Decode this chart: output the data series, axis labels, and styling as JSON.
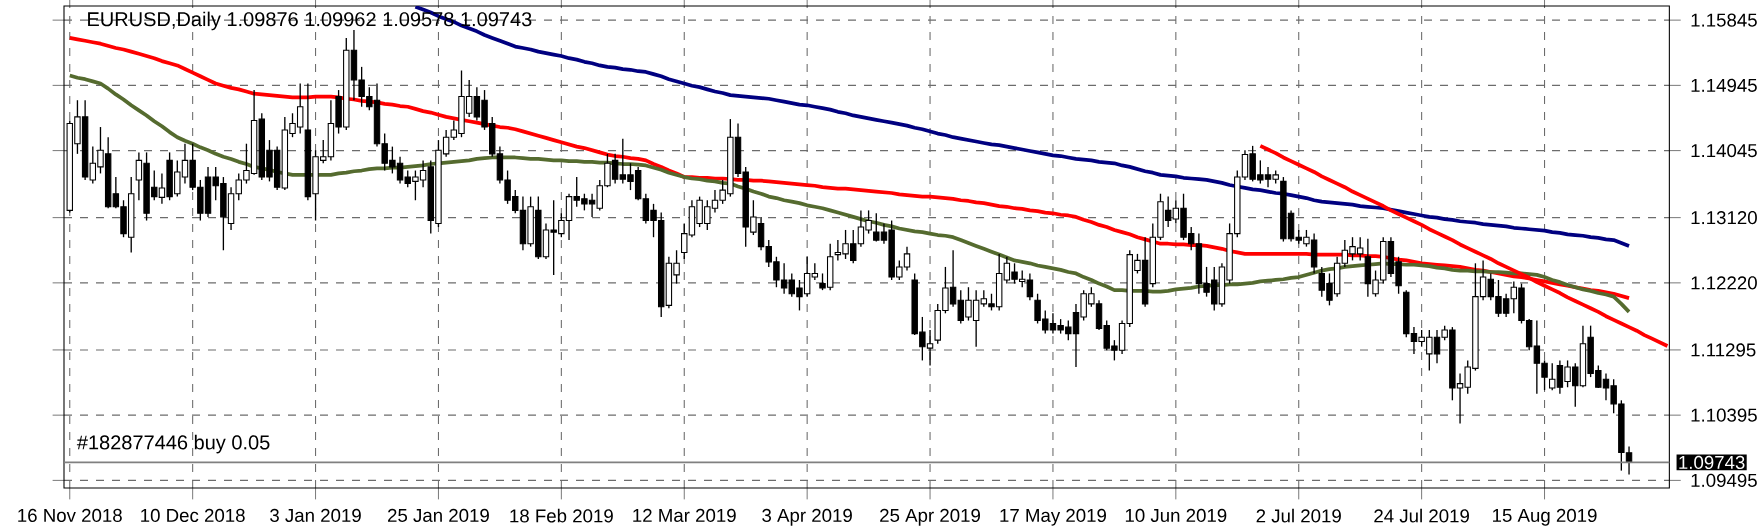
{
  "chart_data": {
    "type": "candlestick",
    "title": "EURUSD,Daily  1.09876 1.09962 1.09578 1.09743",
    "annotations": [
      "#182877446 buy 0.05"
    ],
    "categories": [
      "16 Nov 2018",
      null,
      null,
      null,
      null,
      null,
      null,
      null,
      null,
      null,
      null,
      null,
      null,
      null,
      null,
      null,
      "10 Dec 2018",
      null,
      null,
      null,
      null,
      null,
      null,
      null,
      null,
      null,
      null,
      null,
      null,
      null,
      null,
      null,
      "3 Jan 2019",
      null,
      null,
      null,
      null,
      null,
      null,
      null,
      null,
      null,
      null,
      null,
      null,
      null,
      null,
      null,
      "25 Jan 2019",
      null,
      null,
      null,
      null,
      null,
      null,
      null,
      null,
      null,
      null,
      null,
      null,
      null,
      null,
      null,
      "18 Feb 2019",
      null,
      null,
      null,
      null,
      null,
      null,
      null,
      null,
      null,
      null,
      null,
      null,
      null,
      null,
      null,
      "12 Mar 2019",
      null,
      null,
      null,
      null,
      null,
      null,
      null,
      null,
      null,
      null,
      null,
      null,
      null,
      null,
      null,
      "3 Apr 2019",
      null,
      null,
      null,
      null,
      null,
      null,
      null,
      null,
      null,
      null,
      null,
      null,
      null,
      null,
      null,
      "25 Apr 2019",
      null,
      null,
      null,
      null,
      null,
      null,
      null,
      null,
      null,
      null,
      null,
      null,
      null,
      null,
      null,
      "17 May 2019",
      null,
      null,
      null,
      null,
      null,
      null,
      null,
      null,
      null,
      null,
      null,
      null,
      null,
      null,
      null,
      "10 Jun 2019",
      null,
      null,
      null,
      null,
      null,
      null,
      null,
      null,
      null,
      null,
      null,
      null,
      null,
      null,
      null,
      "2 Jul 2019",
      null,
      null,
      null,
      null,
      null,
      null,
      null,
      null,
      null,
      null,
      null,
      null,
      null,
      null,
      null,
      "24 Jul 2019",
      null,
      null,
      null,
      null,
      null,
      null,
      null,
      null,
      null,
      null,
      null,
      null,
      null,
      null,
      null,
      "15 Aug 2019",
      null,
      null,
      null,
      null,
      null,
      null,
      null,
      null,
      null,
      null,
      null,
      null,
      null,
      null,
      null,
      null
    ],
    "ohlc": [
      [
        1.1322,
        1.1446,
        1.1319,
        1.1442
      ],
      [
        1.1414,
        1.1474,
        1.14,
        1.1451
      ],
      [
        1.1451,
        1.1474,
        1.1364,
        1.1368
      ],
      [
        1.1364,
        1.141,
        1.1359,
        1.1387
      ],
      [
        1.1382,
        1.1437,
        1.1373,
        1.1405
      ],
      [
        1.14,
        1.1423,
        1.1325,
        1.1327
      ],
      [
        1.1345,
        1.1368,
        1.1325,
        1.1327
      ],
      [
        1.1327,
        1.1336,
        1.1285,
        1.129
      ],
      [
        1.1285,
        1.1368,
        1.1264,
        1.1345
      ],
      [
        1.1364,
        1.1402,
        1.1336,
        1.1391
      ],
      [
        1.1387,
        1.1402,
        1.1308,
        1.1318
      ],
      [
        1.1354,
        1.1377,
        1.1336,
        1.1341
      ],
      [
        1.134,
        1.1373,
        1.1331,
        1.1353
      ],
      [
        1.1391,
        1.1402,
        1.1336,
        1.1341
      ],
      [
        1.1345,
        1.1391,
        1.1341,
        1.1375
      ],
      [
        1.1368,
        1.1414,
        1.1359,
        1.1391
      ],
      [
        1.1391,
        1.1414,
        1.135,
        1.1354
      ],
      [
        1.1354,
        1.1364,
        1.1308,
        1.1318
      ],
      [
        1.1368,
        1.1382,
        1.1313,
        1.1318
      ],
      [
        1.1368,
        1.1382,
        1.1336,
        1.1356
      ],
      [
        1.1359,
        1.1368,
        1.1267,
        1.1313
      ],
      [
        1.1304,
        1.1354,
        1.1295,
        1.1345
      ],
      [
        1.1345,
        1.1373,
        1.1336,
        1.1364
      ],
      [
        1.1364,
        1.1414,
        1.1359,
        1.1377
      ],
      [
        1.1373,
        1.1488,
        1.1371,
        1.1446
      ],
      [
        1.1448,
        1.1456,
        1.1364,
        1.1368
      ],
      [
        1.1405,
        1.1419,
        1.1362,
        1.1368
      ],
      [
        1.1405,
        1.141,
        1.135,
        1.1354
      ],
      [
        1.1353,
        1.1451,
        1.135,
        1.1433
      ],
      [
        1.1428,
        1.1456,
        1.1423,
        1.1442
      ],
      [
        1.1437,
        1.1497,
        1.1428,
        1.1465
      ],
      [
        1.1433,
        1.1497,
        1.1336,
        1.1341
      ],
      [
        1.1345,
        1.1405,
        1.1308,
        1.1396
      ],
      [
        1.1391,
        1.1419,
        1.1387,
        1.1396
      ],
      [
        1.1396,
        1.1474,
        1.1391,
        1.1442
      ],
      [
        1.1479,
        1.1488,
        1.1428,
        1.1437
      ],
      [
        1.1437,
        1.156,
        1.1433,
        1.1543
      ],
      [
        1.1543,
        1.1571,
        1.1474,
        1.1502
      ],
      [
        1.1502,
        1.152,
        1.1465,
        1.1479
      ],
      [
        1.1479,
        1.1492,
        1.146,
        1.1465
      ],
      [
        1.1474,
        1.1497,
        1.141,
        1.1414
      ],
      [
        1.1414,
        1.1428,
        1.1377,
        1.1387
      ],
      [
        1.1391,
        1.141,
        1.1373,
        1.1382
      ],
      [
        1.1387,
        1.1396,
        1.1359,
        1.1364
      ],
      [
        1.1368,
        1.1377,
        1.1354,
        1.1359
      ],
      [
        1.1362,
        1.1377,
        1.1336,
        1.1368
      ],
      [
        1.1364,
        1.1391,
        1.1354,
        1.1377
      ],
      [
        1.1382,
        1.1391,
        1.129,
        1.1308
      ],
      [
        1.1304,
        1.1419,
        1.1299,
        1.1405
      ],
      [
        1.14,
        1.1433,
        1.1396,
        1.1423
      ],
      [
        1.1423,
        1.1446,
        1.1419,
        1.1433
      ],
      [
        1.1428,
        1.1515,
        1.1423,
        1.1479
      ],
      [
        1.1456,
        1.1502,
        1.1451,
        1.1479
      ],
      [
        1.1479,
        1.1492,
        1.1446,
        1.1451
      ],
      [
        1.1474,
        1.1488,
        1.1433,
        1.1437
      ],
      [
        1.1442,
        1.1451,
        1.1396,
        1.14
      ],
      [
        1.14,
        1.141,
        1.1359,
        1.1364
      ],
      [
        1.1364,
        1.1377,
        1.1331,
        1.1336
      ],
      [
        1.1341,
        1.135,
        1.1318,
        1.1322
      ],
      [
        1.1322,
        1.1341,
        1.1267,
        1.1276
      ],
      [
        1.1276,
        1.1341,
        1.1272,
        1.1327
      ],
      [
        1.1322,
        1.1341,
        1.1255,
        1.1258
      ],
      [
        1.1258,
        1.1304,
        1.1255,
        1.1295
      ],
      [
        1.1295,
        1.1336,
        1.1233,
        1.1292
      ],
      [
        1.129,
        1.1318,
        1.1285,
        1.1308
      ],
      [
        1.1308,
        1.1345,
        1.1281,
        1.1341
      ],
      [
        1.1341,
        1.1368,
        1.1327,
        1.1336
      ],
      [
        1.1338,
        1.1345,
        1.1322,
        1.1331
      ],
      [
        1.1336,
        1.1345,
        1.1313,
        1.1331
      ],
      [
        1.1325,
        1.1364,
        1.1322,
        1.1356
      ],
      [
        1.1356,
        1.14,
        1.1354,
        1.1387
      ],
      [
        1.1391,
        1.14,
        1.1359,
        1.1365
      ],
      [
        1.1371,
        1.1421,
        1.1359,
        1.1365
      ],
      [
        1.1371,
        1.1387,
        1.135,
        1.1362
      ],
      [
        1.1377,
        1.1382,
        1.1336,
        1.1338
      ],
      [
        1.1338,
        1.1345,
        1.1304,
        1.1308
      ],
      [
        1.1322,
        1.1331,
        1.1285,
        1.1308
      ],
      [
        1.1308,
        1.1319,
        1.1175,
        1.1189
      ],
      [
        1.1191,
        1.1258,
        1.1187,
        1.1249
      ],
      [
        1.1233,
        1.1267,
        1.1221,
        1.1249
      ],
      [
        1.1264,
        1.1304,
        1.1255,
        1.129
      ],
      [
        1.1288,
        1.1336,
        1.1285,
        1.1327
      ],
      [
        1.1304,
        1.1341,
        1.1299,
        1.1336
      ],
      [
        1.1304,
        1.1336,
        1.1295,
        1.1327
      ],
      [
        1.1325,
        1.135,
        1.1319,
        1.1336
      ],
      [
        1.1336,
        1.1364,
        1.1331,
        1.135
      ],
      [
        1.1345,
        1.1448,
        1.1341,
        1.1423
      ],
      [
        1.1423,
        1.1442,
        1.1368,
        1.1373
      ],
      [
        1.1375,
        1.1382,
        1.1272,
        1.1299
      ],
      [
        1.1292,
        1.1336,
        1.1288,
        1.1313
      ],
      [
        1.1304,
        1.1313,
        1.1267,
        1.1272
      ],
      [
        1.1272,
        1.1281,
        1.1244,
        1.1251
      ],
      [
        1.1251,
        1.1258,
        1.1216,
        1.1226
      ],
      [
        1.1226,
        1.1249,
        1.1207,
        1.1215
      ],
      [
        1.1226,
        1.1235,
        1.1203,
        1.1207
      ],
      [
        1.1215,
        1.1226,
        1.1184,
        1.1203
      ],
      [
        1.1207,
        1.1258,
        1.1203,
        1.1235
      ],
      [
        1.123,
        1.1249,
        1.1226,
        1.1235
      ],
      [
        1.1221,
        1.1235,
        1.1212,
        1.1215
      ],
      [
        1.1216,
        1.1276,
        1.1212,
        1.1258
      ],
      [
        1.1261,
        1.1281,
        1.1253,
        1.1264
      ],
      [
        1.1262,
        1.1295,
        1.1255,
        1.1276
      ],
      [
        1.1276,
        1.1295,
        1.1249,
        1.1253
      ],
      [
        1.1276,
        1.1322,
        1.1272,
        1.1299
      ],
      [
        1.1295,
        1.1322,
        1.129,
        1.1308
      ],
      [
        1.1292,
        1.1318,
        1.1279,
        1.1281
      ],
      [
        1.1292,
        1.1304,
        1.1276,
        1.1281
      ],
      [
        1.1295,
        1.1308,
        1.1226,
        1.123
      ],
      [
        1.123,
        1.1253,
        1.1226,
        1.1244
      ],
      [
        1.1244,
        1.1272,
        1.1239,
        1.1262
      ],
      [
        1.1226,
        1.1235,
        1.115,
        1.1152
      ],
      [
        1.1154,
        1.1175,
        1.1115,
        1.1134
      ],
      [
        1.1132,
        1.1157,
        1.1108,
        1.1138
      ],
      [
        1.1143,
        1.1193,
        1.1138,
        1.1184
      ],
      [
        1.1184,
        1.1244,
        1.118,
        1.1215
      ],
      [
        1.1216,
        1.1267,
        1.1189,
        1.1193
      ],
      [
        1.1198,
        1.1212,
        1.1166,
        1.117
      ],
      [
        1.1175,
        1.1216,
        1.117,
        1.1198
      ],
      [
        1.117,
        1.1212,
        1.1134,
        1.1198
      ],
      [
        1.1193,
        1.1212,
        1.1189,
        1.12
      ],
      [
        1.1193,
        1.1207,
        1.1184,
        1.1189
      ],
      [
        1.1189,
        1.1262,
        1.1184,
        1.1235
      ],
      [
        1.1226,
        1.1258,
        1.1221,
        1.1249
      ],
      [
        1.1237,
        1.1249,
        1.1221,
        1.1227
      ],
      [
        1.1224,
        1.1239,
        1.1216,
        1.1227
      ],
      [
        1.1226,
        1.1235,
        1.1198,
        1.1203
      ],
      [
        1.1198,
        1.1207,
        1.1166,
        1.117
      ],
      [
        1.1172,
        1.1184,
        1.1152,
        1.1157
      ],
      [
        1.1166,
        1.118,
        1.1152,
        1.1157
      ],
      [
        1.1163,
        1.1172,
        1.1152,
        1.1157
      ],
      [
        1.1161,
        1.117,
        1.1143,
        1.1152
      ],
      [
        1.1181,
        1.1193,
        1.1106,
        1.1152
      ],
      [
        1.1175,
        1.1212,
        1.117,
        1.1207
      ],
      [
        1.1193,
        1.1216,
        1.1189,
        1.1207
      ],
      [
        1.1193,
        1.1198,
        1.1157,
        1.1159
      ],
      [
        1.1163,
        1.117,
        1.1129,
        1.1132
      ],
      [
        1.1135,
        1.1143,
        1.1115,
        1.1129
      ],
      [
        1.1129,
        1.117,
        1.1124,
        1.1166
      ],
      [
        1.1166,
        1.1267,
        1.1161,
        1.1261
      ],
      [
        1.1239,
        1.1262,
        1.1235,
        1.1253
      ],
      [
        1.1253,
        1.1285,
        1.1189,
        1.1193
      ],
      [
        1.1221,
        1.1304,
        1.1216,
        1.1285
      ],
      [
        1.1285,
        1.1345,
        1.1281,
        1.1334
      ],
      [
        1.1322,
        1.1341,
        1.1299,
        1.1308
      ],
      [
        1.131,
        1.1336,
        1.1304,
        1.1325
      ],
      [
        1.1325,
        1.1345,
        1.1281,
        1.1285
      ],
      [
        1.129,
        1.1299,
        1.1267,
        1.1276
      ],
      [
        1.1276,
        1.129,
        1.1207,
        1.1221
      ],
      [
        1.1221,
        1.1244,
        1.1203,
        1.1209
      ],
      [
        1.1226,
        1.1244,
        1.1184,
        1.1193
      ],
      [
        1.1193,
        1.1249,
        1.1189,
        1.1244
      ],
      [
        1.1226,
        1.1304,
        1.1221,
        1.129
      ],
      [
        1.129,
        1.1377,
        1.1285,
        1.1368
      ],
      [
        1.1368,
        1.1405,
        1.1364,
        1.1399
      ],
      [
        1.14,
        1.1411,
        1.1362,
        1.1365
      ],
      [
        1.1371,
        1.1391,
        1.1359,
        1.1364
      ],
      [
        1.1371,
        1.1382,
        1.1354,
        1.1365
      ],
      [
        1.1365,
        1.1377,
        1.1359,
        1.1371
      ],
      [
        1.1362,
        1.1368,
        1.1279,
        1.1283
      ],
      [
        1.1318,
        1.1322,
        1.1279,
        1.1283
      ],
      [
        1.1285,
        1.1295,
        1.1276,
        1.1281
      ],
      [
        1.1276,
        1.1295,
        1.1272,
        1.1285
      ],
      [
        1.1281,
        1.129,
        1.1235,
        1.1244
      ],
      [
        1.1235,
        1.1244,
        1.1203,
        1.1212
      ],
      [
        1.1221,
        1.1235,
        1.1191,
        1.1198
      ],
      [
        1.1207,
        1.1258,
        1.1203,
        1.1249
      ],
      [
        1.1249,
        1.1281,
        1.1244,
        1.1267
      ],
      [
        1.1262,
        1.1285,
        1.1253,
        1.1272
      ],
      [
        1.1262,
        1.1285,
        1.1253,
        1.127
      ],
      [
        1.1258,
        1.1283,
        1.1203,
        1.1221
      ],
      [
        1.1207,
        1.1239,
        1.1203,
        1.1226
      ],
      [
        1.1226,
        1.1285,
        1.1221,
        1.1279
      ],
      [
        1.1279,
        1.1285,
        1.123,
        1.1235
      ],
      [
        1.1251,
        1.1258,
        1.1207,
        1.1218
      ],
      [
        1.1209,
        1.1212,
        1.1147,
        1.1152
      ],
      [
        1.1152,
        1.1161,
        1.1124,
        1.1141
      ],
      [
        1.1141,
        1.1157,
        1.1134,
        1.1147
      ],
      [
        1.1124,
        1.1157,
        1.1101,
        1.1147
      ],
      [
        1.1147,
        1.1157,
        1.1111,
        1.1124
      ],
      [
        1.1147,
        1.1163,
        1.1143,
        1.1157
      ],
      [
        1.1157,
        1.1161,
        1.106,
        1.1077
      ],
      [
        1.1077,
        1.1097,
        1.1028,
        1.1083
      ],
      [
        1.1078,
        1.1115,
        1.1069,
        1.1106
      ],
      [
        1.1104,
        1.1249,
        1.1101,
        1.1203
      ],
      [
        1.1203,
        1.1253,
        1.1198,
        1.123
      ],
      [
        1.1227,
        1.1235,
        1.1198,
        1.1203
      ],
      [
        1.1203,
        1.1226,
        1.1175,
        1.118
      ],
      [
        1.12,
        1.1207,
        1.1175,
        1.118
      ],
      [
        1.12,
        1.1224,
        1.118,
        1.1216
      ],
      [
        1.1215,
        1.1221,
        1.1166,
        1.117
      ],
      [
        1.117,
        1.1172,
        1.1129,
        1.1134
      ],
      [
        1.1135,
        1.117,
        1.1069,
        1.1111
      ],
      [
        1.1111,
        1.1115,
        1.1074,
        1.1092
      ],
      [
        1.1077,
        1.1111,
        1.1074,
        1.1089
      ],
      [
        1.1108,
        1.1115,
        1.1069,
        1.1078
      ],
      [
        1.1086,
        1.1115,
        1.1078,
        1.1106
      ],
      [
        1.1106,
        1.1111,
        1.1051,
        1.108
      ],
      [
        1.108,
        1.1163,
        1.1078,
        1.1138
      ],
      [
        1.1147,
        1.1163,
        1.1092,
        1.1097
      ],
      [
        1.1101,
        1.1108,
        1.1077,
        1.1078
      ],
      [
        1.1089,
        1.1097,
        1.106,
        1.1077
      ],
      [
        1.108,
        1.1089,
        1.1042,
        1.1055
      ],
      [
        1.1055,
        1.106,
        1.0963,
        1.0988
      ],
      [
        1.09876,
        1.09962,
        1.09578,
        1.09743
      ],
      null,
      null,
      null,
      null,
      null
    ],
    "series": [
      {
        "type": "line",
        "color": "#000080",
        "values": [
          null,
          null,
          null,
          null,
          null,
          null,
          null,
          null,
          null,
          null,
          null,
          null,
          null,
          null,
          null,
          null,
          null,
          null,
          null,
          null,
          null,
          null,
          null,
          null,
          null,
          null,
          null,
          null,
          null,
          null,
          null,
          null,
          null,
          null,
          null,
          null,
          null,
          null,
          null,
          null,
          null,
          null,
          null,
          null,
          null,
          1.1603,
          1.1599,
          1.1595,
          1.159,
          1.1586,
          1.1582,
          1.1577,
          1.1573,
          1.1569,
          1.1564,
          1.156,
          1.1556,
          1.1552,
          1.1548,
          1.1546,
          1.1544,
          1.1541,
          1.1539,
          1.1537,
          1.1535,
          1.1532,
          1.153,
          1.1527,
          1.1525,
          1.1522,
          1.152,
          1.1519,
          1.1517,
          1.1516,
          1.1514,
          1.1513,
          1.151,
          1.1507,
          1.1503,
          1.15,
          1.1497,
          1.1494,
          1.1492,
          1.1489,
          1.1486,
          1.1484,
          1.1481,
          1.148,
          1.1479,
          1.1478,
          1.1477,
          1.1476,
          1.1474,
          1.1472,
          1.147,
          1.1468,
          1.1467,
          1.1465,
          1.1463,
          1.1461,
          1.1458,
          1.1456,
          1.1453,
          1.1451,
          1.1449,
          1.1447,
          1.1445,
          1.1443,
          1.1441,
          1.1439,
          1.1436,
          1.1434,
          1.1431,
          1.1428,
          1.1426,
          1.1423,
          1.1421,
          1.1419,
          1.1417,
          1.1415,
          1.1413,
          1.1412,
          1.141,
          1.1408,
          1.1406,
          1.1404,
          1.1402,
          1.14,
          1.1398,
          1.1397,
          1.1395,
          1.1393,
          1.1392,
          1.1391,
          1.1389,
          1.1388,
          1.1387,
          1.1384,
          1.1382,
          1.1379,
          1.1376,
          1.1374,
          1.1371,
          1.137,
          1.1369,
          1.1367,
          1.1366,
          1.1365,
          1.1364,
          1.1362,
          1.136,
          1.1357,
          1.1355,
          1.1353,
          1.1351,
          1.135,
          1.1348,
          1.1346,
          1.1345,
          1.1343,
          1.1341,
          1.1339,
          1.1336,
          1.1334,
          1.1333,
          1.1332,
          1.1331,
          1.133,
          1.1328,
          1.1327,
          1.1326,
          1.1325,
          1.1323,
          1.1321,
          1.1319,
          1.1317,
          1.1315,
          1.1313,
          1.1312,
          1.131,
          1.1309,
          1.1307,
          1.1306,
          1.1305,
          1.1303,
          1.1302,
          1.1301,
          1.13,
          1.1298,
          1.1297,
          1.1296,
          1.1295,
          1.1294,
          1.1292,
          1.1291,
          1.1289,
          1.1288,
          1.1287,
          1.1285,
          1.1284,
          1.1282,
          1.1281,
          1.1277,
          1.1273,
          null,
          null,
          null,
          null,
          null
        ]
      },
      {
        "type": "line",
        "color": "#ff0000",
        "values": [
          1.156,
          1.1558,
          1.1556,
          1.1554,
          1.1552,
          1.1549,
          1.1546,
          1.1544,
          1.1541,
          1.1538,
          1.1535,
          1.1532,
          1.1528,
          1.1525,
          1.1522,
          1.1517,
          1.1512,
          1.1507,
          1.1502,
          1.1497,
          1.1494,
          1.1491,
          1.1489,
          1.1486,
          1.1483,
          1.1482,
          1.1481,
          1.148,
          1.1479,
          1.1478,
          1.1478,
          1.1478,
          1.1479,
          1.1479,
          1.1479,
          1.1478,
          1.1476,
          1.1475,
          1.1473,
          1.1472,
          1.1471,
          1.1469,
          1.1468,
          1.1466,
          1.1465,
          1.1462,
          1.1459,
          1.1457,
          1.1454,
          1.1451,
          1.1449,
          1.1447,
          1.1445,
          1.1443,
          1.1441,
          1.1439,
          1.1437,
          1.1436,
          1.1434,
          1.1431,
          1.1428,
          1.1425,
          1.1422,
          1.1419,
          1.1416,
          1.1413,
          1.141,
          1.1408,
          1.1405,
          1.1402,
          1.1399,
          1.1397,
          1.1396,
          1.1394,
          1.1393,
          1.1391,
          1.1386,
          1.1382,
          1.1377,
          1.1373,
          1.1368,
          1.1368,
          1.1367,
          1.1367,
          1.1366,
          1.1366,
          1.1365,
          1.1364,
          1.1364,
          1.1363,
          1.1363,
          1.1362,
          1.1361,
          1.136,
          1.1359,
          1.1358,
          1.1357,
          1.1356,
          1.1354,
          1.1353,
          1.1352,
          1.1352,
          1.1351,
          1.135,
          1.1349,
          1.1348,
          1.1347,
          1.1346,
          1.1344,
          1.1343,
          1.1342,
          1.1341,
          1.1341,
          1.134,
          1.1339,
          1.1338,
          1.1336,
          1.1335,
          1.1333,
          1.1332,
          1.133,
          1.1328,
          1.1327,
          1.1325,
          1.1324,
          1.1322,
          1.1321,
          1.1319,
          1.1318,
          1.1316,
          1.1315,
          1.1313,
          1.1309,
          1.1306,
          1.1302,
          1.1299,
          1.1295,
          1.1292,
          1.1289,
          1.1285,
          1.1282,
          1.1279,
          1.1276,
          1.1276,
          1.1275,
          1.1275,
          1.1274,
          1.1274,
          1.1273,
          1.1271,
          1.1269,
          1.1266,
          1.1264,
          1.1262,
          1.1262,
          1.1262,
          1.1262,
          1.1262,
          1.1262,
          1.1262,
          1.1262,
          1.1262,
          1.1261,
          1.1261,
          1.1261,
          1.1261,
          1.1261,
          1.126,
          1.126,
          1.1259,
          1.1259,
          1.1258,
          1.1256,
          1.1254,
          1.1253,
          1.1251,
          1.1249,
          1.1248,
          1.1247,
          1.1246,
          1.1245,
          1.1244,
          1.1242,
          1.124,
          1.1239,
          1.1237,
          1.1235,
          1.1233,
          1.1231,
          1.123,
          1.1228,
          1.1226,
          1.1224,
          1.1222,
          1.122,
          1.1218,
          1.1216,
          1.1214,
          1.1212,
          1.1211,
          1.1209,
          1.1207,
          1.1204,
          1.1201,
          null,
          null,
          null,
          null,
          null
        ]
      },
      {
        "type": "line",
        "color": "#556b2f",
        "values": [
          1.1508,
          1.1505,
          1.1503,
          1.15,
          1.1497,
          1.149,
          1.1482,
          1.1475,
          1.1467,
          1.146,
          1.1453,
          1.1445,
          1.1438,
          1.143,
          1.1423,
          1.1418,
          1.1414,
          1.1409,
          1.1405,
          1.14,
          1.1396,
          1.1393,
          1.1389,
          1.1386,
          1.1382,
          1.138,
          1.1378,
          1.1375,
          1.1373,
          1.1371,
          1.1371,
          1.1371,
          1.1371,
          1.1371,
          1.1371,
          1.1373,
          1.1374,
          1.1376,
          1.1377,
          1.1379,
          1.138,
          1.138,
          1.1381,
          1.1381,
          1.1382,
          1.1383,
          1.1384,
          1.1386,
          1.1387,
          1.1388,
          1.1389,
          1.139,
          1.1391,
          1.1393,
          1.1394,
          1.1395,
          1.1395,
          1.1395,
          1.1395,
          1.1394,
          1.1393,
          1.1393,
          1.1392,
          1.1391,
          1.1391,
          1.139,
          1.139,
          1.1389,
          1.1389,
          1.1388,
          1.1388,
          1.1387,
          1.1386,
          1.1386,
          1.1385,
          1.1384,
          1.1381,
          1.1378,
          1.1374,
          1.1371,
          1.1368,
          1.1366,
          1.1365,
          1.1363,
          1.1362,
          1.136,
          1.1359,
          1.1355,
          1.1352,
          1.1348,
          1.1345,
          1.1341,
          1.1339,
          1.1336,
          1.1334,
          1.1332,
          1.1329,
          1.1327,
          1.1325,
          1.1322,
          1.1319,
          1.1316,
          1.1313,
          1.131,
          1.1307,
          1.1305,
          1.1302,
          1.13,
          1.1297,
          1.1295,
          1.1293,
          1.1292,
          1.129,
          1.1288,
          1.1287,
          1.1285,
          1.1281,
          1.1277,
          1.1273,
          1.1269,
          1.1265,
          1.1261,
          1.1257,
          1.1253,
          1.1251,
          1.1249,
          1.1246,
          1.1244,
          1.1242,
          1.124,
          1.1237,
          1.1235,
          1.123,
          1.1226,
          1.1221,
          1.1217,
          1.1212,
          1.1212,
          1.1211,
          1.1211,
          1.1211,
          1.121,
          1.121,
          1.1211,
          1.1213,
          1.1214,
          1.1215,
          1.1217,
          1.1218,
          1.1219,
          1.1219,
          1.122,
          1.122,
          1.1221,
          1.1222,
          1.1224,
          1.1225,
          1.1226,
          1.1227,
          1.1229,
          1.123,
          1.1233,
          1.1236,
          1.1239,
          1.1241,
          1.1242,
          1.1244,
          1.1245,
          1.1246,
          1.1247,
          1.1248,
          1.1249,
          1.1248,
          1.1248,
          1.1247,
          1.1247,
          1.1246,
          1.1245,
          1.1243,
          1.1242,
          1.124,
          1.1239,
          1.1239,
          1.1238,
          1.1238,
          1.1237,
          1.1237,
          1.1236,
          1.1235,
          1.1235,
          1.1234,
          1.1233,
          1.123,
          1.1226,
          1.1223,
          1.1219,
          1.1216,
          1.1213,
          1.1211,
          1.1208,
          1.1206,
          1.1203,
          1.1193,
          1.1182,
          null,
          null,
          null,
          null,
          null
        ]
      },
      {
        "type": "line",
        "color": "#ff0000",
        "values": [
          null,
          null,
          null,
          null,
          null,
          null,
          null,
          null,
          null,
          null,
          null,
          null,
          null,
          null,
          null,
          null,
          null,
          null,
          null,
          null,
          null,
          null,
          null,
          null,
          null,
          null,
          null,
          null,
          null,
          null,
          null,
          null,
          null,
          null,
          null,
          null,
          null,
          null,
          null,
          null,
          null,
          null,
          null,
          null,
          null,
          null,
          null,
          null,
          null,
          null,
          null,
          null,
          null,
          null,
          null,
          null,
          null,
          null,
          null,
          null,
          null,
          null,
          null,
          null,
          null,
          null,
          null,
          null,
          null,
          null,
          null,
          null,
          null,
          null,
          null,
          null,
          null,
          null,
          null,
          null,
          null,
          null,
          null,
          null,
          null,
          null,
          null,
          null,
          null,
          null,
          null,
          null,
          null,
          null,
          null,
          null,
          null,
          null,
          null,
          null,
          null,
          null,
          null,
          null,
          null,
          null,
          null,
          null,
          null,
          null,
          null,
          null,
          null,
          null,
          null,
          null,
          null,
          null,
          null,
          null,
          null,
          null,
          null,
          null,
          null,
          null,
          null,
          null,
          null,
          null,
          null,
          null,
          null,
          null,
          null,
          null,
          null,
          null,
          null,
          null,
          null,
          null,
          null,
          null,
          null,
          null,
          null,
          null,
          null,
          null,
          null,
          null,
          null,
          null,
          null,
          1.1411,
          1.1406,
          1.1401,
          1.1395,
          1.139,
          1.1385,
          1.138,
          1.1375,
          1.1369,
          1.1364,
          1.1359,
          1.1354,
          1.1348,
          1.1343,
          1.1338,
          1.1333,
          1.1328,
          1.1322,
          1.1317,
          1.1312,
          1.1307,
          1.1302,
          1.1296,
          1.1291,
          1.1286,
          1.1281,
          1.1275,
          1.127,
          1.1265,
          1.126,
          1.1255,
          1.1249,
          1.1244,
          1.1239,
          1.1234,
          1.1229,
          1.1223,
          1.1218,
          1.1213,
          1.1208,
          1.1202,
          1.1197,
          1.1192,
          1.1187,
          1.1182,
          1.1176,
          1.1171,
          1.1166,
          1.1161,
          1.1156,
          1.115,
          1.1145,
          1.114,
          1.1135
        ]
      }
    ],
    "ylim": [
      1.0939,
      1.1604
    ],
    "yticks": [
      1.09495,
      1.10395,
      1.11295,
      {
        "value": 1.1222,
        "label": "1.12220"
      },
      {
        "value": 1.1312,
        "label": "1.13120"
      },
      1.14045,
      1.14945,
      1.15845
    ],
    "grid": true,
    "ref_lines": [
      {
        "axis": "y",
        "value": 1.09743,
        "label": "1.09743",
        "color": "#808080"
      }
    ]
  }
}
